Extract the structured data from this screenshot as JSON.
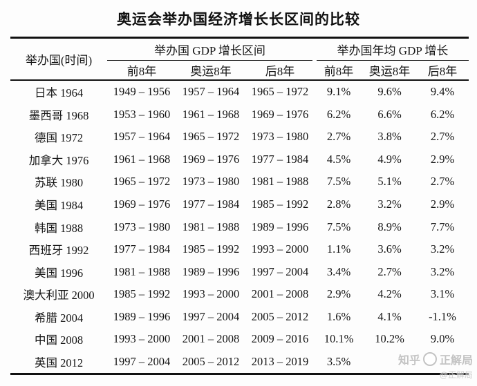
{
  "title": "奥运会举办国经济增长长区间的比较",
  "header": {
    "host": "举办国(时间)",
    "group1": "举办国 GDP 增长区间",
    "group2": "举办国年均 GDP 增长",
    "sub": [
      "前8年",
      "奥运8年",
      "后8年",
      "前8年",
      "奥运8年",
      "后8年"
    ]
  },
  "table": {
    "rows": [
      {
        "host": "日本 1964",
        "cells": [
          "1949 – 1956",
          "1957 – 1964",
          "1965 – 1972",
          "9.1%",
          "9.6%",
          "9.4%"
        ]
      },
      {
        "host": "墨西哥 1968",
        "cells": [
          "1953 – 1960",
          "1961 – 1968",
          "1969 – 1976",
          "6.2%",
          "6.6%",
          "6.2%"
        ]
      },
      {
        "host": "德国 1972",
        "cells": [
          "1957 – 1964",
          "1965 – 1972",
          "1973 – 1980",
          "2.7%",
          "3.8%",
          "2.7%"
        ]
      },
      {
        "host": "加拿大 1976",
        "cells": [
          "1961 – 1968",
          "1969 – 1976",
          "1977 – 1984",
          "4.5%",
          "4.9%",
          "2.9%"
        ]
      },
      {
        "host": "苏联 1980",
        "cells": [
          "1965 – 1972",
          "1973 – 1980",
          "1981 – 1988",
          "7.5%",
          "5.1%",
          "2.7%"
        ]
      },
      {
        "host": "美国 1984",
        "cells": [
          "1969 – 1976",
          "1977 – 1984",
          "1985 – 1992",
          "2.8%",
          "3.2%",
          "2.9%"
        ]
      },
      {
        "host": "韩国 1988",
        "cells": [
          "1973 – 1980",
          "1981 – 1988",
          "1989 – 1996",
          "7.5%",
          "8.9%",
          "7.7%"
        ]
      },
      {
        "host": "西班牙 1992",
        "cells": [
          "1977 – 1984",
          "1985 – 1992",
          "1993 – 2000",
          "1.1%",
          "3.6%",
          "3.2%"
        ]
      },
      {
        "host": "美国 1996",
        "cells": [
          "1981 – 1988",
          "1989 – 1996",
          "1997 – 2004",
          "3.4%",
          "2.7%",
          "3.2%"
        ]
      },
      {
        "host": "澳大利亚 2000",
        "cells": [
          "1985 – 1992",
          "1993 – 2000",
          "2001 – 2008",
          "2.9%",
          "4.2%",
          "3.1%"
        ]
      },
      {
        "host": "希腊 2004",
        "cells": [
          "1989 – 1996",
          "1997 – 2004",
          "2005 – 2012",
          "1.6%",
          "4.1%",
          "-1.1%"
        ]
      },
      {
        "host": "中国 2008",
        "cells": [
          "1993 – 2000",
          "2001 – 2008",
          "2009 – 2016",
          "10.1%",
          "10.2%",
          "9.0%"
        ]
      },
      {
        "host": "英国 2012",
        "cells": [
          "1997 – 2004",
          "2005 – 2012",
          "2013 – 2019",
          "3.5%",
          "",
          ""
        ]
      }
    ]
  },
  "watermark": {
    "line1_prefix": "知乎",
    "line1_name": "正解局",
    "line2": "@正解局"
  }
}
